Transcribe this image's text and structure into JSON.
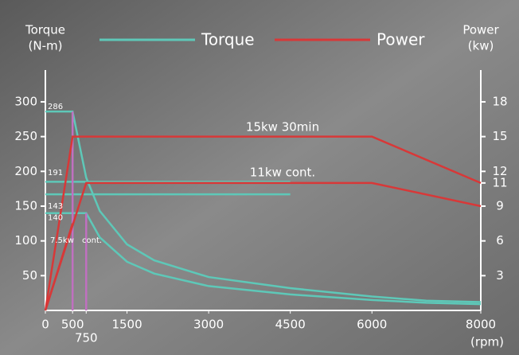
{
  "chart_data": {
    "type": "line",
    "y_label": [
      "Torque",
      "(N-m)"
    ],
    "y2_label": [
      "Power",
      "(kw)"
    ],
    "x_label": "(rpm)",
    "legend": [
      {
        "name": "Torque",
        "color": "#5ec8b8"
      },
      {
        "name": "Power",
        "color": "#d83838"
      }
    ],
    "xlim": [
      0,
      8000
    ],
    "xticks": [
      0,
      500,
      750,
      1500,
      3000,
      4500,
      6000,
      8000
    ],
    "ylim": [
      0,
      340
    ],
    "yticks": [
      50,
      100,
      150,
      200,
      250,
      300
    ],
    "y2lim": [
      0,
      20.4
    ],
    "y2ticks": [
      3,
      6,
      9,
      11,
      12,
      15,
      18
    ],
    "torque_marks": [
      286,
      191,
      143,
      140
    ],
    "annotations": [
      "15kw 30min",
      "11kw   cont.",
      "7.5kw",
      "cont."
    ],
    "series": [
      {
        "color": "#5ec8b8",
        "x": [
          0,
          500,
          750,
          1000,
          1500,
          2000,
          3000,
          4500,
          6000,
          7000,
          8000
        ],
        "values": [
          286,
          286,
          191,
          143,
          95,
          72,
          48,
          32,
          20,
          14,
          12
        ]
      },
      {
        "color": "#5ec8b8",
        "x": [
          0,
          750,
          1000,
          1500,
          2000,
          3000,
          4500,
          6000,
          7000,
          8000
        ],
        "values": [
          140,
          140,
          105,
          70,
          53,
          35,
          23,
          15,
          11,
          9
        ]
      },
      {
        "color": "#5ec8b8",
        "x": [
          0,
          4500
        ],
        "values": [
          185,
          185
        ]
      },
      {
        "color": "#5ec8b8",
        "x": [
          0,
          4500
        ],
        "values": [
          167,
          167
        ]
      },
      {
        "color": "#c070c0",
        "x": [
          500,
          500
        ],
        "values": [
          0,
          286
        ]
      },
      {
        "color": "#c070c0",
        "x": [
          750,
          750
        ],
        "values": [
          0,
          140
        ]
      },
      {
        "color": "#d83838",
        "axis": "y2",
        "x": [
          0,
          500,
          6000,
          8000
        ],
        "values": [
          0,
          15,
          15,
          11
        ]
      },
      {
        "color": "#d83838",
        "axis": "y2",
        "x": [
          0,
          750,
          6000,
          8000
        ],
        "values": [
          0,
          11,
          11,
          9
        ]
      },
      {
        "color": "#d83838",
        "axis": "y2",
        "x": [
          0,
          500
        ],
        "values": [
          0,
          7.5
        ]
      }
    ]
  }
}
